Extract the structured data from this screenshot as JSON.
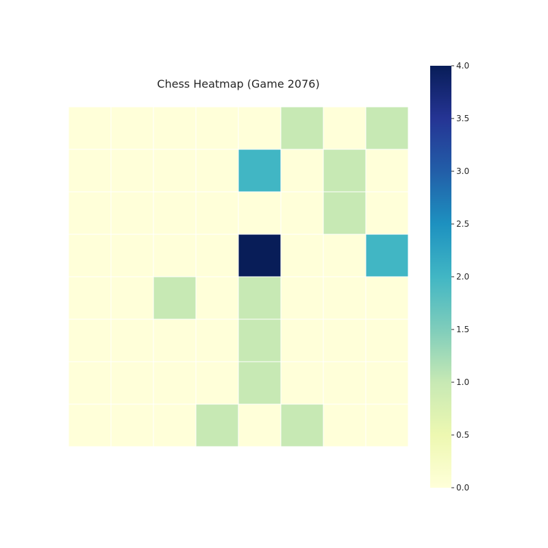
{
  "chart_data": {
    "type": "heatmap",
    "title": "Chess Heatmap (Game 2076)",
    "xlabel": "",
    "ylabel": "",
    "rows": 8,
    "cols": 8,
    "values": [
      [
        0,
        0,
        0,
        0,
        0,
        1,
        0,
        1
      ],
      [
        0,
        0,
        0,
        0,
        2,
        0,
        1,
        0
      ],
      [
        0,
        0,
        0,
        0,
        0,
        0,
        1,
        0
      ],
      [
        0,
        0,
        0,
        0,
        4,
        0,
        0,
        2
      ],
      [
        0,
        0,
        1,
        0,
        1,
        0,
        0,
        0
      ],
      [
        0,
        0,
        0,
        0,
        1,
        0,
        0,
        0
      ],
      [
        0,
        0,
        0,
        0,
        1,
        0,
        0,
        0
      ],
      [
        0,
        0,
        0,
        1,
        0,
        1,
        0,
        0
      ]
    ],
    "colormap": "YlGnBu",
    "vmin": 0,
    "vmax": 4,
    "colorbar_ticks": [
      "0.0",
      "0.5",
      "1.0",
      "1.5",
      "2.0",
      "2.5",
      "3.0",
      "3.5",
      "4.0"
    ],
    "grid_line_color": "#ffffff",
    "show_axes": false
  }
}
